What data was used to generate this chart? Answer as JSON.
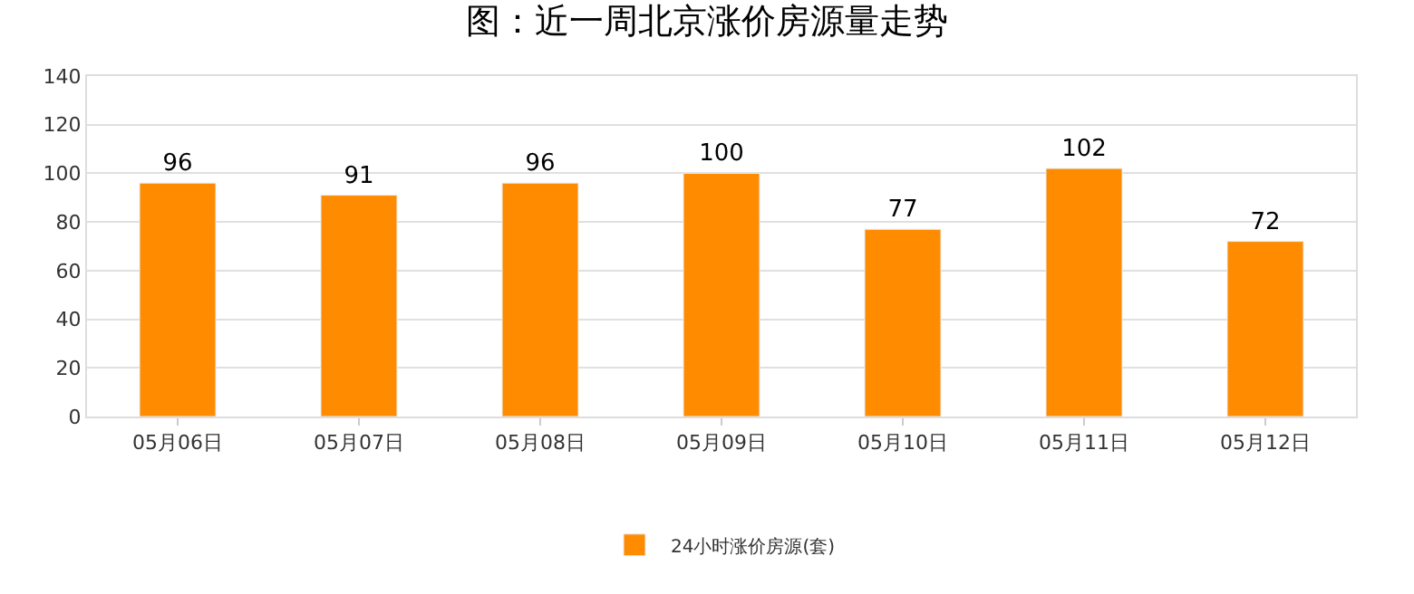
{
  "chart_data": {
    "type": "bar",
    "title": "图：近一周北京涨价房源量走势",
    "categories": [
      "05月06日",
      "05月07日",
      "05月08日",
      "05月09日",
      "05月10日",
      "05月11日",
      "05月12日"
    ],
    "series": [
      {
        "name": "24小时涨价房源(套)",
        "color": "#ff8c00",
        "values": [
          96,
          91,
          96,
          100,
          77,
          102,
          72
        ]
      }
    ],
    "ylim": [
      0,
      140
    ],
    "yticks": [
      0,
      20,
      40,
      60,
      80,
      100,
      120,
      140
    ],
    "grid": "y",
    "legend": "bottom",
    "data_labels": true
  }
}
